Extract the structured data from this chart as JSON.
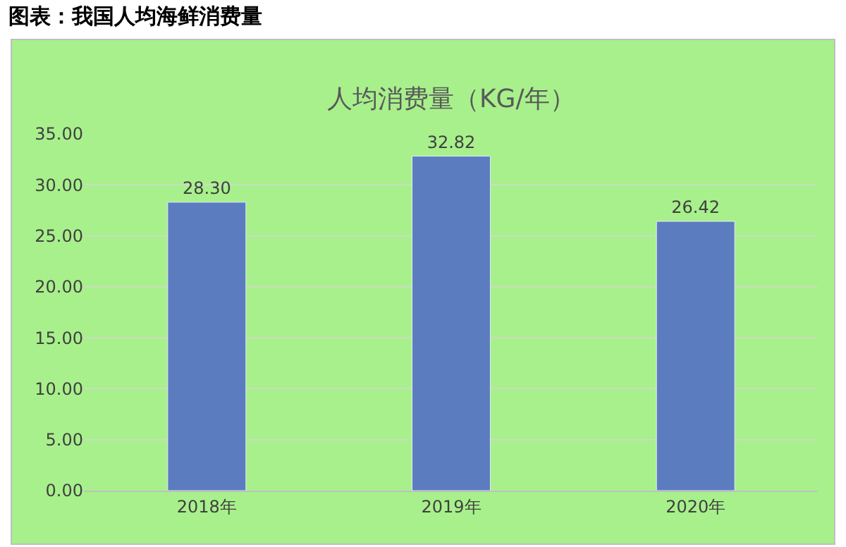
{
  "chart_data": {
    "type": "bar",
    "title": "图表：我国人均海鲜消费量",
    "subtitle": "人均消费量（KG/年）",
    "categories": [
      "2018年",
      "2019年",
      "2020年"
    ],
    "values": [
      28.3,
      32.82,
      26.42
    ],
    "value_labels": [
      "28.30",
      "32.82",
      "26.42"
    ],
    "color": "#5b7dbf",
    "ylim": [
      0,
      35
    ],
    "yticks": [
      {
        "value": 0,
        "label": "0.00"
      },
      {
        "value": 5,
        "label": "5.00"
      },
      {
        "value": 10,
        "label": "10.00"
      },
      {
        "value": 15,
        "label": "15.00"
      },
      {
        "value": 20,
        "label": "20.00"
      },
      {
        "value": 25,
        "label": "25.00"
      },
      {
        "value": 30,
        "label": "30.00"
      },
      {
        "value": 35,
        "label": "35.00"
      }
    ],
    "grid": "y",
    "legend": false
  }
}
